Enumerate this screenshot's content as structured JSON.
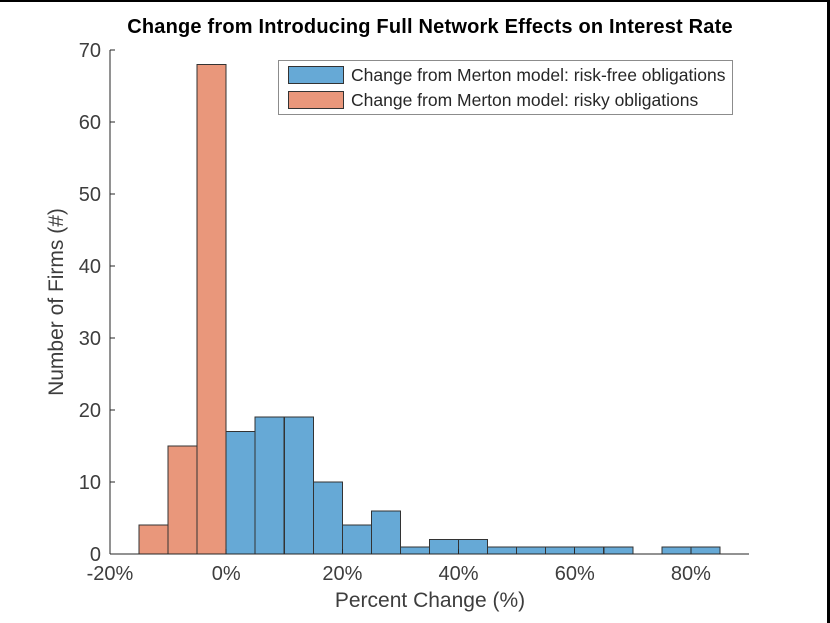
{
  "window": {
    "background": "#ffffff",
    "border_color": "#000000"
  },
  "chart_data": {
    "type": "bar",
    "subtype": "histogram",
    "title": "Change from Introducing Full Network Effects on Interest Rate",
    "xlabel": "Percent Change (%)",
    "ylabel": "Number of Firms (#)",
    "xlim": [
      -20,
      90
    ],
    "ylim": [
      0,
      70
    ],
    "bin_width": 5,
    "grid": false,
    "legend_position": "top-center-inside",
    "xticks": [
      {
        "v": -20,
        "label": "-20%"
      },
      {
        "v": 0,
        "label": "0%"
      },
      {
        "v": 20,
        "label": "20%"
      },
      {
        "v": 40,
        "label": "40%"
      },
      {
        "v": 60,
        "label": "60%"
      },
      {
        "v": 80,
        "label": "80%"
      }
    ],
    "yticks": [
      {
        "v": 0,
        "label": "0"
      },
      {
        "v": 10,
        "label": "10"
      },
      {
        "v": 20,
        "label": "20"
      },
      {
        "v": 30,
        "label": "30"
      },
      {
        "v": 40,
        "label": "40"
      },
      {
        "v": 50,
        "label": "50"
      },
      {
        "v": 60,
        "label": "60"
      },
      {
        "v": 70,
        "label": "70"
      }
    ],
    "series": [
      {
        "name": "Change from Merton model: risk-free obligations",
        "fill": "#66A9D6",
        "edge": "#333333",
        "bins": [
          {
            "start": 0,
            "count": 17
          },
          {
            "start": 5,
            "count": 19
          },
          {
            "start": 10,
            "count": 19
          },
          {
            "start": 15,
            "count": 10
          },
          {
            "start": 20,
            "count": 4
          },
          {
            "start": 25,
            "count": 6
          },
          {
            "start": 30,
            "count": 1
          },
          {
            "start": 35,
            "count": 2
          },
          {
            "start": 40,
            "count": 2
          },
          {
            "start": 45,
            "count": 1
          },
          {
            "start": 50,
            "count": 1
          },
          {
            "start": 55,
            "count": 1
          },
          {
            "start": 60,
            "count": 1
          },
          {
            "start": 65,
            "count": 1
          },
          {
            "start": 75,
            "count": 1
          },
          {
            "start": 80,
            "count": 1
          }
        ]
      },
      {
        "name": "Change from Merton model: risky obligations",
        "fill": "#E9977B",
        "edge": "#333333",
        "bins": [
          {
            "start": -15,
            "count": 4
          },
          {
            "start": -10,
            "count": 15
          },
          {
            "start": -5,
            "count": 68
          }
        ]
      }
    ],
    "axis_color": "#262626",
    "tick_label_color": "#3d3d3d",
    "tick_label_font_px": 20
  }
}
